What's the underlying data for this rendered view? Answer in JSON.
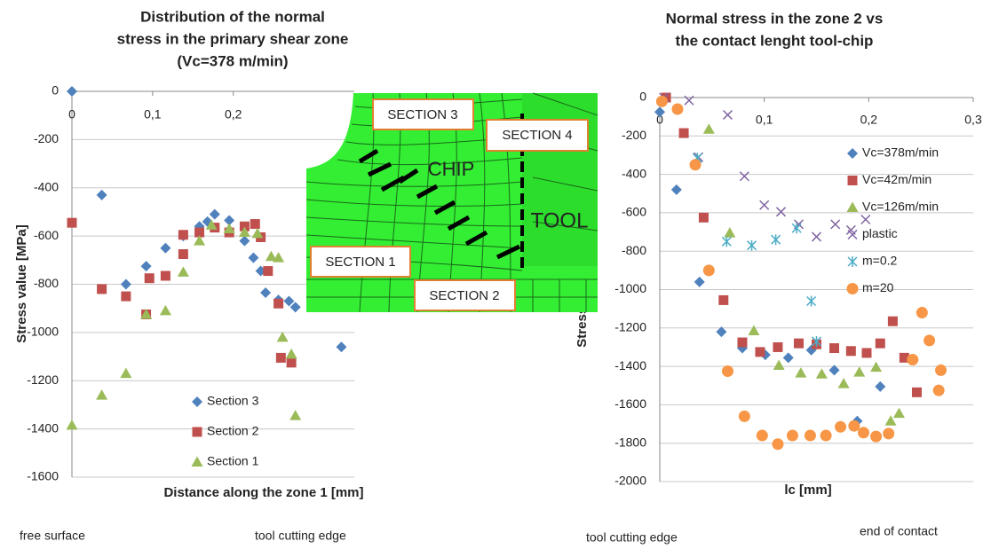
{
  "chart_data": [
    {
      "type": "scatter",
      "title": [
        "Distribution of the normal",
        "stress in the primary shear zone",
        "(Vc=378 m/min)"
      ],
      "xlabel": "Distance along the zone 1 [mm]",
      "ylabel": "Stress value [MPa]",
      "xlim": [
        0,
        0.35
      ],
      "ylim": [
        -1600,
        0
      ],
      "xticks": [
        0,
        {
          "value": 0.1,
          "label": "0,1"
        },
        {
          "value": 0.2,
          "label": "0,2"
        }
      ],
      "yticks": [
        0,
        -200,
        -400,
        -600,
        -800,
        -1000,
        -1200,
        -1400,
        -1600
      ],
      "grid": true,
      "annotations": [
        "free surface",
        "tool cutting edge"
      ],
      "series": [
        {
          "name": "Section 3",
          "color": "#4f81bd",
          "marker": "diamond",
          "x": [
            0,
            0.037,
            0.067,
            0.092,
            0.116,
            0.138,
            0.158,
            0.168,
            0.177,
            0.195,
            0.214,
            0.225,
            0.234,
            0.24,
            0.256,
            0.269,
            0.277,
            0.334
          ],
          "values": [
            0,
            -430,
            -800,
            -725,
            -650,
            -600,
            -560,
            -540,
            -510,
            -535,
            -620,
            -690,
            -745,
            -835,
            -865,
            -870,
            -895,
            -1060
          ]
        },
        {
          "name": "Section 2",
          "color": "#c0504d",
          "marker": "square",
          "x": [
            0,
            0.037,
            0.067,
            0.092,
            0.096,
            0.116,
            0.138,
            0.138,
            0.158,
            0.177,
            0.195,
            0.214,
            0.227,
            0.234,
            0.243,
            0.256,
            0.259,
            0.272
          ],
          "values": [
            -545,
            -820,
            -850,
            -925,
            -775,
            -765,
            -675,
            -595,
            -585,
            -565,
            -585,
            -560,
            -550,
            -605,
            -745,
            -880,
            -1105,
            -1125
          ]
        },
        {
          "name": "Section 1",
          "color": "#9bbb59",
          "marker": "triangle",
          "x": [
            0,
            0.037,
            0.067,
            0.092,
            0.116,
            0.138,
            0.158,
            0.173,
            0.195,
            0.214,
            0.23,
            0.247,
            0.256,
            0.261,
            0.272,
            0.277
          ],
          "values": [
            -1385,
            -1260,
            -1170,
            -925,
            -910,
            -750,
            -620,
            -555,
            -570,
            -585,
            -590,
            -685,
            -690,
            -1020,
            -1090,
            -1345
          ]
        }
      ]
    },
    {
      "type": "scatter",
      "title": [
        "Normal stress in the zone 2 vs",
        "the contact lenght tool-chip"
      ],
      "xlabel": "lc [mm]",
      "ylabel": "Stress value [MPa]",
      "xlim": [
        0,
        0.3
      ],
      "ylim": [
        -2000,
        0
      ],
      "xticks": [
        0,
        {
          "value": 0.1,
          "label": "0,1"
        },
        {
          "value": 0.2,
          "label": "0,2"
        },
        {
          "value": 0.3,
          "label": "0,3"
        }
      ],
      "yticks": [
        0,
        -200,
        -400,
        -600,
        -800,
        -1000,
        -1200,
        -1400,
        -1600,
        -1800,
        -2000
      ],
      "grid": true,
      "annotations": [
        "tool cutting edge",
        "end of contact"
      ],
      "series": [
        {
          "name": "Vc=378m/min",
          "color": "#4f81bd",
          "marker": "diamond",
          "x": [
            0,
            0.016,
            0.038,
            0.059,
            0.079,
            0.101,
            0.123,
            0.145,
            0.167,
            0.189,
            0.211
          ],
          "values": [
            -75,
            -480,
            -960,
            -1220,
            -1305,
            -1340,
            -1355,
            -1315,
            -1420,
            -1685,
            -1505
          ]
        },
        {
          "name": "Vc=42m/min",
          "color": "#c0504d",
          "marker": "square",
          "x": [
            0.006,
            0.023,
            0.042,
            0.061,
            0.079,
            0.096,
            0.113,
            0.133,
            0.15,
            0.167,
            0.183,
            0.198,
            0.211,
            0.223,
            0.234,
            0.246
          ],
          "values": [
            0,
            -185,
            -625,
            -1055,
            -1275,
            -1325,
            -1300,
            -1280,
            -1285,
            -1305,
            -1320,
            -1330,
            -1280,
            -1165,
            -1355,
            -1535
          ]
        },
        {
          "name": "Vc=126m/min",
          "color": "#9bbb59",
          "marker": "triangle",
          "x": [
            0.047,
            0.067,
            0.09,
            0.114,
            0.135,
            0.155,
            0.176,
            0.191,
            0.207,
            0.221,
            0.229
          ],
          "values": [
            -165,
            -705,
            -1215,
            -1395,
            -1435,
            -1440,
            -1490,
            -1430,
            -1405,
            -1685,
            -1645
          ]
        },
        {
          "name": "plastic",
          "color": "#8064a2",
          "marker": "x",
          "x": [
            0.004,
            0.028,
            0.037,
            0.065,
            0.081,
            0.1,
            0.116,
            0.133,
            0.15,
            0.168,
            0.183,
            0.197
          ],
          "values": [
            0,
            -15,
            -310,
            -90,
            -410,
            -560,
            -595,
            -660,
            -725,
            -660,
            -690,
            -635
          ]
        },
        {
          "name": "m=0.2",
          "color": "#4bacc6",
          "marker": "asterisk",
          "x": [
            0.036,
            0.064,
            0.088,
            0.111,
            0.131,
            0.145,
            0.15
          ],
          "values": [
            -315,
            -750,
            -770,
            -740,
            -680,
            -1060,
            -1270
          ]
        },
        {
          "name": "m=20",
          "color": "#f79646",
          "marker": "circle",
          "x": [
            0.002,
            0.017,
            0.034,
            0.047,
            0.065,
            0.081,
            0.098,
            0.113,
            0.127,
            0.144,
            0.159,
            0.173,
            0.186,
            0.195,
            0.207,
            0.219,
            0.242,
            0.251,
            0.258,
            0.267,
            0.269
          ],
          "values": [
            -20,
            -60,
            -350,
            -900,
            -1425,
            -1660,
            -1760,
            -1805,
            -1760,
            -1760,
            -1760,
            -1715,
            -1710,
            -1745,
            -1765,
            -1750,
            -1365,
            -1120,
            -1265,
            -1525,
            -1420
          ]
        }
      ]
    }
  ],
  "inset": {
    "labels": [
      "SECTION 3",
      "SECTION 4",
      "CHIP",
      "TOOL",
      "SECTION 1",
      "SECTION 2"
    ]
  }
}
